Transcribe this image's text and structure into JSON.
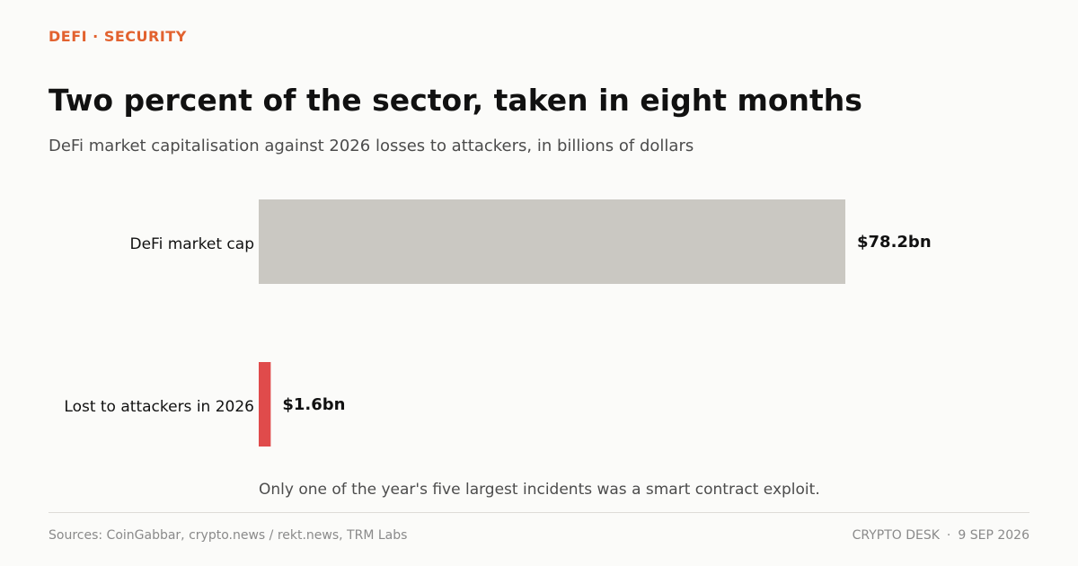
{
  "kicker": "DEFI · SECURITY",
  "title": "Two percent of the sector, taken in eight months",
  "subtitle": "DeFi market capitalisation against 2026 losses to attackers, in billions of dollars",
  "note": "Only one of the year's five largest incidents was a smart contract exploit.",
  "footer": {
    "sources": "Sources: CoinGabbar, crypto.news / rekt.news, TRM Labs",
    "desk": "CRYPTO DESK",
    "separator": "·",
    "date": "9 SEP 2026"
  },
  "colors": {
    "accent": "#e2622f",
    "market_bar": "#cac8c2",
    "loss_bar": "#e04b4b"
  },
  "chart_data": {
    "type": "bar",
    "orientation": "horizontal",
    "categories": [
      "DeFi market cap",
      "Lost to attackers in 2026"
    ],
    "values": [
      78.2,
      1.6
    ],
    "value_labels": [
      "$78.2bn",
      "$1.6bn"
    ],
    "unit": "billions of dollars",
    "xlim": [
      0,
      78.2
    ],
    "grid": false,
    "legend": "none"
  }
}
